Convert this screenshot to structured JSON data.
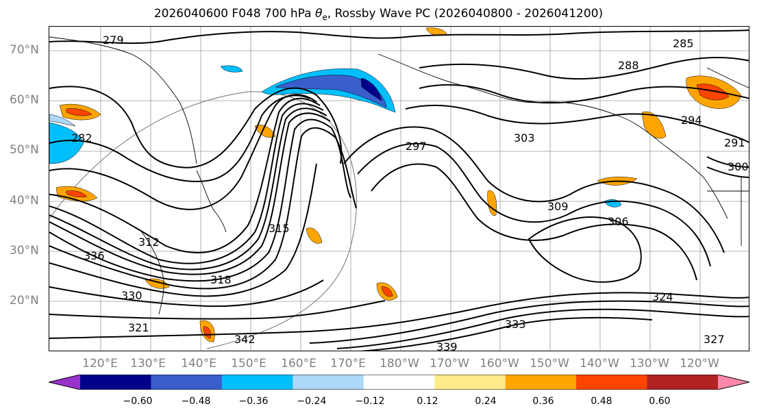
{
  "title": "2026040600 F048 700 hPa θe, Rossby Wave PC (2026040800 - 2026041200)",
  "title_parts": {
    "prefix": "2026040600 F048 700 hPa ",
    "theta": "θ",
    "sub": "e",
    "suffix": ", Rossby Wave PC (2026040800 - 2026041200)"
  },
  "lat_labels": [
    "70°N",
    "60°N",
    "50°N",
    "40°N",
    "30°N",
    "20°N"
  ],
  "lon_labels": [
    "120°E",
    "130°E",
    "140°E",
    "150°E",
    "160°E",
    "170°E",
    "180°W",
    "170°W",
    "160°W",
    "150°W",
    "140°W",
    "130°W",
    "120°W"
  ],
  "contour_labels": [
    "279",
    "282",
    "285",
    "288",
    "291",
    "294",
    "297",
    "300",
    "303",
    "306",
    "309",
    "312",
    "315",
    "318",
    "321",
    "324",
    "327",
    "330",
    "333",
    "336",
    "339",
    "342"
  ],
  "colorbar": {
    "ticks": [
      "−0.60",
      "−0.48",
      "−0.36",
      "−0.24",
      "−0.12",
      "0.12",
      "0.24",
      "0.36",
      "0.48",
      "0.60"
    ],
    "colors": [
      "#9932CC",
      "#00008B",
      "#3A5FCD",
      "#00BFFF",
      "#ADD8F7",
      "#FFFFFF",
      "#FFEB8A",
      "#FFA500",
      "#FF4500",
      "#B22222",
      "#FF88AA"
    ]
  },
  "colors": {
    "contour": "#000000",
    "coast": "#000000",
    "grid": "#7f7f7f",
    "label": "#808080"
  }
}
